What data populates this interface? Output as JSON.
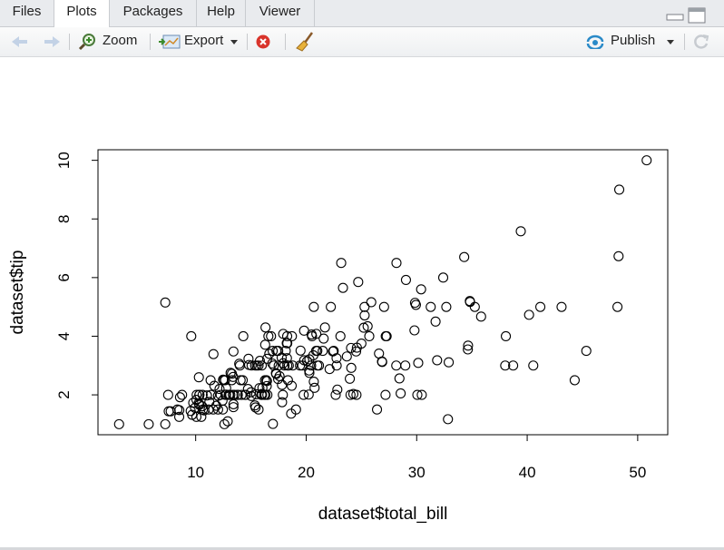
{
  "tabs": [
    "Files",
    "Plots",
    "Packages",
    "Help",
    "Viewer"
  ],
  "toolbar": {
    "zoom": "Zoom",
    "export": "Export",
    "publish": "Publish"
  },
  "chart_data": {
    "type": "scatter",
    "xlabel": "dataset$total_bill",
    "ylabel": "dataset$tip",
    "color": "#000000",
    "x": [
      16.99,
      10.34,
      21.01,
      23.68,
      24.59,
      25.29,
      8.77,
      26.88,
      15.04,
      14.78,
      10.27,
      35.26,
      15.42,
      18.43,
      14.83,
      21.58,
      10.33,
      16.29,
      16.97,
      20.65,
      17.92,
      20.29,
      15.77,
      39.42,
      19.82,
      17.81,
      13.37,
      12.69,
      21.7,
      19.65,
      9.55,
      18.35,
      15.06,
      20.69,
      17.78,
      24.06,
      16.31,
      16.93,
      18.69,
      31.27,
      16.04,
      17.46,
      13.94,
      9.68,
      30.4,
      18.29,
      22.23,
      32.4,
      28.55,
      18.04,
      12.54,
      10.29,
      34.81,
      9.94,
      25.56,
      19.49,
      38.01,
      26.41,
      11.24,
      48.27,
      20.29,
      13.81,
      11.02,
      18.29,
      17.59,
      20.08,
      16.45,
      3.07,
      20.23,
      15.01,
      12.02,
      17.07,
      26.86,
      25.28,
      14.73,
      10.51,
      17.92,
      27.2,
      22.76,
      17.29,
      19.44,
      16.66,
      10.07,
      32.68,
      15.98,
      34.83,
      13.03,
      18.28,
      24.71,
      21.16,
      28.97,
      22.49,
      5.75,
      16.32,
      22.75,
      40.17,
      27.28,
      12.03,
      21.01,
      12.46,
      11.35,
      15.38,
      44.3,
      22.42,
      20.92,
      15.36,
      20.49,
      25.21,
      18.24,
      14.31,
      14,
      7.25,
      38.07,
      23.95,
      25.71,
      17.31,
      29.93,
      10.65,
      12.43,
      24.08,
      11.69,
      13.42,
      14.26,
      15.95,
      12.48,
      29.8,
      8.52,
      14.52,
      11.38,
      22.82,
      19.08,
      20.27,
      11.17,
      12.26,
      18.26,
      8.51,
      10.33,
      14.15,
      16,
      13.16,
      17.47,
      34.3,
      41.19,
      27.05,
      16.43,
      8.35,
      18.64,
      11.87,
      9.78,
      7.51,
      14.07,
      13.13,
      17.26,
      24.55,
      19.77,
      29.85,
      48.17,
      25,
      13.39,
      16.49,
      21.5,
      12.66,
      16.21,
      13.81,
      17.51,
      24.52,
      20.76,
      31.71,
      10.59,
      10.63,
      50.81,
      15.81,
      7.25,
      31.85,
      16.82,
      32.9,
      17.89,
      14.48,
      9.6,
      34.63,
      34.65,
      23.33,
      45.35,
      23.17,
      40.55,
      20.69,
      20.9,
      30.46,
      18.15,
      23.1,
      15.69,
      19.81,
      28.44,
      15.48,
      16.58,
      7.56,
      10.34,
      43.11,
      13,
      13.51,
      18.71,
      12.74,
      13,
      16.4,
      20.53,
      16.47,
      26.59,
      38.73,
      24.27,
      12.76,
      30.06,
      25.89,
      48.33,
      13.27,
      28.17,
      12.9,
      28.15,
      11.59,
      7.74,
      30.14,
      12.16,
      13.42,
      8.58,
      15.98,
      13.42,
      16.27,
      10.09,
      20.45,
      13.28,
      22.12,
      24.01,
      15.69,
      11.61,
      10.77,
      15.53,
      10.07,
      12.6,
      32.83,
      35.83,
      29.03,
      27.18,
      22.67,
      17.82,
      18.78
    ],
    "values": [
      1.01,
      1.66,
      3.5,
      3.31,
      3.61,
      4.71,
      2,
      3.12,
      1.96,
      3.23,
      1.71,
      5,
      1.57,
      3,
      3.02,
      3.92,
      1.67,
      3.71,
      3.5,
      3.35,
      4.08,
      2.75,
      2.23,
      7.58,
      3.18,
      2.34,
      2,
      2,
      4.3,
      3,
      1.45,
      2.5,
      3,
      2.45,
      3.27,
      3.6,
      2,
      3.07,
      2.31,
      5,
      2.24,
      2.54,
      3.06,
      1.32,
      5.6,
      3,
      5,
      6,
      2.05,
      3,
      2.5,
      2.6,
      5.2,
      1.56,
      4.34,
      3.51,
      3,
      1.5,
      1.76,
      6.73,
      3.21,
      2,
      1.98,
      3.76,
      2.64,
      3.15,
      2.47,
      1,
      2.01,
      2.09,
      1.97,
      3,
      3.14,
      5,
      2.2,
      1.25,
      3.08,
      4,
      3,
      2.71,
      3,
      3.4,
      1.83,
      5,
      2.03,
      5.17,
      2,
      4,
      5.85,
      3,
      3,
      3.5,
      1,
      4.3,
      3.25,
      4.73,
      4,
      1.5,
      3,
      1.5,
      2.5,
      3,
      2.5,
      3.48,
      4.08,
      1.64,
      4.06,
      4.29,
      3.76,
      4,
      3,
      1,
      4,
      2.55,
      4,
      3.5,
      5.07,
      1.5,
      1.8,
      2.92,
      2.31,
      1.68,
      2.5,
      2,
      2.52,
      4.2,
      1.48,
      2,
      2,
      2.18,
      1.5,
      2.83,
      1.5,
      2,
      3.25,
      1.25,
      2,
      2,
      2,
      2.75,
      3.5,
      6.7,
      5,
      5,
      2.3,
      1.5,
      1.36,
      1.63,
      1.73,
      2,
      2.5,
      2,
      2.74,
      2,
      2,
      5.14,
      5,
      3.75,
      2.61,
      2,
      3.5,
      2.5,
      2,
      2,
      3,
      3.48,
      2.24,
      4.5,
      1.61,
      2,
      10,
      3.16,
      5.15,
      3.18,
      4,
      3.11,
      2,
      2,
      4,
      3.55,
      3.68,
      5.65,
      3.5,
      6.5,
      3,
      5,
      3.5,
      2,
      3.5,
      4,
      1.5,
      4.19,
      2.56,
      2.02,
      4,
      1.44,
      2,
      5,
      2,
      2,
      4,
      2.01,
      2,
      2.5,
      4,
      3.23,
      3.41,
      3,
      2.03,
      2.23,
      2,
      5.16,
      9,
      2.5,
      6.5,
      1.1,
      3,
      1.5,
      1.44,
      3.09,
      2.2,
      3.48,
      1.92,
      3,
      1.58,
      2.5,
      2,
      3,
      2.72,
      2.88,
      2,
      3,
      3.39,
      1.47,
      3,
      1.25,
      1,
      1.17,
      4.67,
      5.92,
      2,
      2,
      1.75,
      3
    ],
    "xlim": [
      1.16,
      52.72
    ],
    "ylim": [
      0.64,
      10.36
    ],
    "xticks": [
      10,
      20,
      30,
      40,
      50
    ],
    "yticks": [
      2,
      4,
      6,
      8,
      10
    ]
  }
}
